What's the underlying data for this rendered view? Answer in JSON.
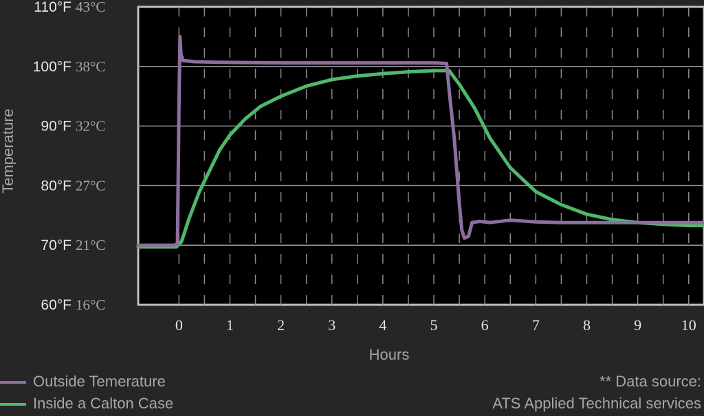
{
  "chart_data": {
    "type": "line",
    "xlabel": "Hours",
    "ylabel": "Temperature",
    "xlim": [
      -0.8,
      10.3
    ],
    "ylim": [
      60,
      110
    ],
    "x_ticks": [
      0,
      1,
      2,
      3,
      4,
      5,
      6,
      7,
      8,
      9,
      10
    ],
    "y_ticks": [
      {
        "f": "60°F",
        "c": "16°C",
        "value": 60
      },
      {
        "f": "70°F",
        "c": "21°C",
        "value": 70
      },
      {
        "f": "80°F",
        "c": "27°C",
        "value": 80
      },
      {
        "f": "90°F",
        "c": "32°C",
        "value": 90
      },
      {
        "f": "100°F",
        "c": "38°C",
        "value": 100
      },
      {
        "f": "110°F",
        "c": "43°C",
        "value": 110
      }
    ],
    "grid": true,
    "legend_position": "bottom-left",
    "series": [
      {
        "name": "Outside Temerature",
        "color": "#8c6fa0",
        "points": [
          [
            -0.8,
            70.0
          ],
          [
            -0.1,
            70.0
          ],
          [
            -0.03,
            70.2
          ],
          [
            0.0,
            93.0
          ],
          [
            0.02,
            105.0
          ],
          [
            0.04,
            102.0
          ],
          [
            0.08,
            101.0
          ],
          [
            0.3,
            100.8
          ],
          [
            0.8,
            100.7
          ],
          [
            2.0,
            100.6
          ],
          [
            3.0,
            100.6
          ],
          [
            4.0,
            100.6
          ],
          [
            5.0,
            100.6
          ],
          [
            5.25,
            100.5
          ],
          [
            5.3,
            96.0
          ],
          [
            5.4,
            88.0
          ],
          [
            5.5,
            77.0
          ],
          [
            5.55,
            72.5
          ],
          [
            5.6,
            71.2
          ],
          [
            5.68,
            71.5
          ],
          [
            5.75,
            73.8
          ],
          [
            5.9,
            74.0
          ],
          [
            6.1,
            73.8
          ],
          [
            6.5,
            74.2
          ],
          [
            7.0,
            73.9
          ],
          [
            7.5,
            73.8
          ],
          [
            8.0,
            73.8
          ],
          [
            9.0,
            73.8
          ],
          [
            10.3,
            73.8
          ]
        ]
      },
      {
        "name": "Inside a Calton Case",
        "color": "#4fb86a",
        "points": [
          [
            -0.8,
            69.7
          ],
          [
            -0.05,
            69.7
          ],
          [
            0.05,
            70.6
          ],
          [
            0.2,
            74.5
          ],
          [
            0.4,
            79.0
          ],
          [
            0.6,
            82.5
          ],
          [
            0.8,
            86.0
          ],
          [
            1.0,
            88.5
          ],
          [
            1.3,
            91.2
          ],
          [
            1.6,
            93.3
          ],
          [
            2.0,
            95.0
          ],
          [
            2.5,
            96.7
          ],
          [
            3.0,
            97.8
          ],
          [
            3.5,
            98.4
          ],
          [
            4.0,
            98.8
          ],
          [
            4.5,
            99.1
          ],
          [
            5.0,
            99.3
          ],
          [
            5.3,
            99.3
          ],
          [
            5.5,
            97.0
          ],
          [
            5.8,
            93.0
          ],
          [
            6.1,
            88.0
          ],
          [
            6.5,
            83.0
          ],
          [
            7.0,
            79.0
          ],
          [
            7.5,
            76.8
          ],
          [
            8.0,
            75.2
          ],
          [
            8.5,
            74.3
          ],
          [
            9.0,
            73.8
          ],
          [
            9.5,
            73.5
          ],
          [
            10.0,
            73.3
          ],
          [
            10.3,
            73.3
          ]
        ]
      }
    ]
  },
  "source": {
    "line1": "** Data source:",
    "line2": "ATS Applied Technical services"
  }
}
